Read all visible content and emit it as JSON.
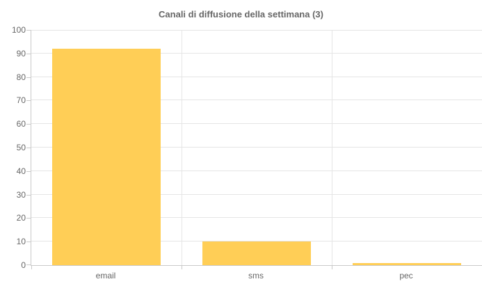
{
  "title": "Canali di diffusione della settimana (3)",
  "colors": {
    "bar": "#FFCE56",
    "gridline": "#E5E5E5",
    "axis_line": "#C9C9C9",
    "text": "#666666",
    "background": "#FFFFFF"
  },
  "chart_data": {
    "type": "bar",
    "title": "Canali di diffusione della settimana (3)",
    "categories": [
      "email",
      "sms",
      "pec"
    ],
    "values": [
      92,
      10,
      1
    ],
    "xlabel": "",
    "ylabel": "",
    "ylim": [
      0,
      100
    ],
    "ytick_step": 10,
    "yticks": [
      0,
      10,
      20,
      30,
      40,
      50,
      60,
      70,
      80,
      90,
      100
    ],
    "grid": true,
    "legend_position": "none",
    "bar_color": "#FFCE56"
  }
}
